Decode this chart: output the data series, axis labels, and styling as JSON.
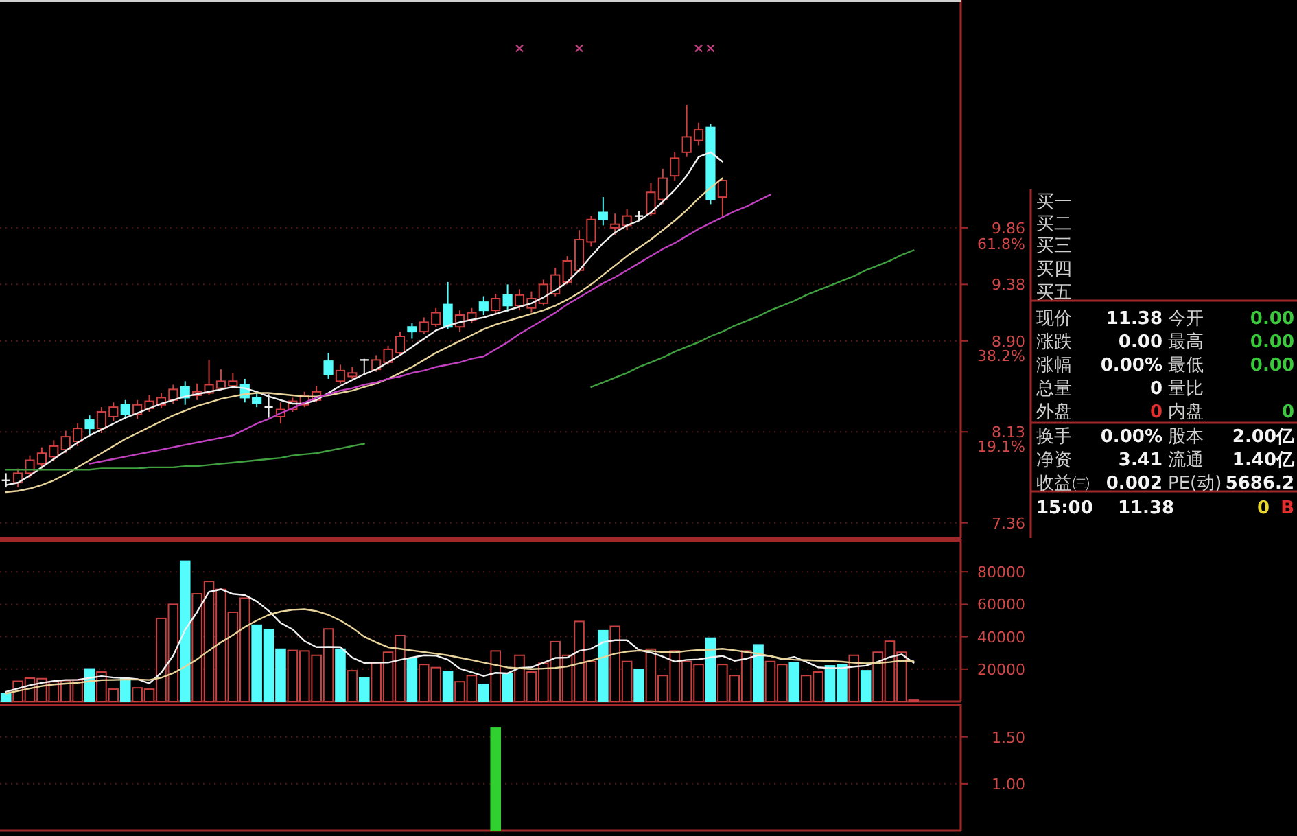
{
  "chart_data": [
    {
      "type": "candlestick",
      "categories": [
        null,
        null,
        null,
        null,
        null,
        null,
        null,
        null,
        null,
        null,
        null,
        null,
        null,
        null,
        null,
        null,
        null,
        null,
        null,
        null,
        null,
        null,
        null,
        null,
        null,
        null,
        null,
        null,
        null,
        null,
        null,
        null,
        null,
        null,
        null,
        null,
        null,
        null,
        null,
        null,
        null,
        null,
        null,
        null,
        null,
        null,
        null,
        null,
        null,
        null,
        null,
        null,
        null,
        null,
        null,
        null,
        null,
        null,
        null,
        null,
        null,
        null,
        null,
        null,
        null,
        null,
        null,
        null,
        null,
        null,
        null,
        null,
        null,
        null,
        null,
        null,
        null
      ],
      "ohlc": [
        [
          7.72,
          7.78,
          7.66,
          7.72
        ],
        [
          7.7,
          7.82,
          7.66,
          7.78
        ],
        [
          7.78,
          7.93,
          7.74,
          7.89
        ],
        [
          7.86,
          8.0,
          7.82,
          7.95
        ],
        [
          7.92,
          8.06,
          7.88,
          8.01
        ],
        [
          7.98,
          8.14,
          7.95,
          8.09
        ],
        [
          8.05,
          8.2,
          8.01,
          8.16
        ],
        [
          8.23,
          8.27,
          8.1,
          8.16
        ],
        [
          8.16,
          8.34,
          8.12,
          8.3
        ],
        [
          8.26,
          8.38,
          8.22,
          8.34
        ],
        [
          8.36,
          8.4,
          8.24,
          8.28
        ],
        [
          8.28,
          8.4,
          8.24,
          8.36
        ],
        [
          8.33,
          8.44,
          8.3,
          8.39
        ],
        [
          8.36,
          8.46,
          8.33,
          8.42
        ],
        [
          8.4,
          8.53,
          8.37,
          8.49
        ],
        [
          8.51,
          8.56,
          8.36,
          8.42
        ],
        [
          8.44,
          8.54,
          8.4,
          8.47
        ],
        [
          8.46,
          8.74,
          8.44,
          8.53
        ],
        [
          8.5,
          8.66,
          8.48,
          8.56
        ],
        [
          8.52,
          8.63,
          8.5,
          8.56
        ],
        [
          8.53,
          8.58,
          8.38,
          8.42
        ],
        [
          8.42,
          8.46,
          8.34,
          8.37
        ],
        [
          8.34,
          8.45,
          8.25,
          8.34
        ],
        [
          8.26,
          8.38,
          8.2,
          8.32
        ],
        [
          8.32,
          8.42,
          8.3,
          8.39
        ],
        [
          8.36,
          8.47,
          8.34,
          8.44
        ],
        [
          8.4,
          8.52,
          8.38,
          8.47
        ],
        [
          8.73,
          8.8,
          8.58,
          8.62
        ],
        [
          8.56,
          8.7,
          8.54,
          8.65
        ],
        [
          8.6,
          8.68,
          8.58,
          8.63
        ],
        [
          8.74,
          8.75,
          8.62,
          8.74
        ],
        [
          8.66,
          8.78,
          8.64,
          8.74
        ],
        [
          8.72,
          8.86,
          8.7,
          8.83
        ],
        [
          8.8,
          8.98,
          8.78,
          8.94
        ],
        [
          9.02,
          9.05,
          8.92,
          8.98
        ],
        [
          8.98,
          9.1,
          8.96,
          9.06
        ],
        [
          9.04,
          9.18,
          9.02,
          9.14
        ],
        [
          9.21,
          9.4,
          9.0,
          9.02
        ],
        [
          9.02,
          9.16,
          8.98,
          9.12
        ],
        [
          9.08,
          9.18,
          9.05,
          9.14
        ],
        [
          9.23,
          9.28,
          9.12,
          9.16
        ],
        [
          9.16,
          9.3,
          9.12,
          9.26
        ],
        [
          9.29,
          9.38,
          9.15,
          9.2
        ],
        [
          9.2,
          9.34,
          9.16,
          9.29
        ],
        [
          9.18,
          9.32,
          9.14,
          9.26
        ],
        [
          9.22,
          9.42,
          9.2,
          9.38
        ],
        [
          9.3,
          9.52,
          9.28,
          9.46
        ],
        [
          9.4,
          9.62,
          9.38,
          9.58
        ],
        [
          9.5,
          9.84,
          9.48,
          9.76
        ],
        [
          9.74,
          9.96,
          9.7,
          9.93
        ],
        [
          9.99,
          10.12,
          9.88,
          9.93
        ],
        [
          9.86,
          9.98,
          9.8,
          9.89
        ],
        [
          9.88,
          10.02,
          9.84,
          9.96
        ],
        [
          9.96,
          10.0,
          9.92,
          9.96
        ],
        [
          9.98,
          10.24,
          9.96,
          10.16
        ],
        [
          10.1,
          10.36,
          10.06,
          10.28
        ],
        [
          10.3,
          10.5,
          10.26,
          10.45
        ],
        [
          10.5,
          10.9,
          10.46,
          10.63
        ],
        [
          10.6,
          10.75,
          10.56,
          10.69
        ],
        [
          10.71,
          10.74,
          10.06,
          10.1
        ],
        [
          10.12,
          10.27,
          9.96,
          10.26
        ],
        null,
        null,
        null,
        null,
        null,
        null,
        null,
        null,
        null,
        null,
        null,
        null,
        null,
        null,
        null,
        null
      ],
      "series": [
        {
          "type": "line",
          "color": "#f0f0f0",
          "values": [
            7.68,
            7.7,
            7.76,
            7.83,
            7.9,
            7.97,
            8.04,
            8.1,
            8.15,
            8.2,
            8.25,
            8.29,
            8.33,
            8.37,
            8.4,
            8.43,
            8.45,
            8.47,
            8.49,
            8.51,
            8.5,
            8.47,
            8.43,
            8.4,
            8.37,
            8.37,
            8.4,
            8.46,
            8.52,
            8.57,
            8.62,
            8.66,
            8.72,
            8.78,
            8.85,
            8.92,
            8.99,
            9.03,
            9.06,
            9.08,
            9.1,
            9.13,
            9.16,
            9.19,
            9.22,
            9.27,
            9.33,
            9.4,
            9.5,
            9.62,
            9.73,
            9.82,
            9.88,
            9.92,
            9.99,
            10.08,
            10.18,
            10.3,
            10.46,
            10.5,
            10.42,
            null,
            null,
            null,
            null,
            null,
            null,
            null,
            null,
            null,
            null,
            null,
            null,
            null,
            null,
            null,
            null
          ]
        },
        {
          "type": "line",
          "color": "#e8d49a",
          "values": [
            7.62,
            7.63,
            7.65,
            7.68,
            7.72,
            7.77,
            7.83,
            7.89,
            7.95,
            8.01,
            8.07,
            8.12,
            8.17,
            8.22,
            8.27,
            8.31,
            8.35,
            8.38,
            8.41,
            8.43,
            8.45,
            8.46,
            8.46,
            8.45,
            8.44,
            8.43,
            8.43,
            8.44,
            8.46,
            8.48,
            8.51,
            8.54,
            8.58,
            8.63,
            8.68,
            8.74,
            8.8,
            8.85,
            8.9,
            8.95,
            9.0,
            9.04,
            9.07,
            9.1,
            9.13,
            9.16,
            9.2,
            9.25,
            9.31,
            9.38,
            9.46,
            9.54,
            9.62,
            9.69,
            9.76,
            9.84,
            9.92,
            10.01,
            10.11,
            10.2,
            10.28,
            null,
            null,
            null,
            null,
            null,
            null,
            null,
            null,
            null,
            null,
            null,
            null,
            null,
            null,
            null,
            null
          ]
        },
        {
          "type": "line",
          "color": "#c040c0",
          "values": [
            null,
            null,
            null,
            null,
            null,
            null,
            null,
            7.86,
            7.88,
            7.9,
            7.92,
            7.94,
            7.96,
            7.98,
            8.0,
            8.02,
            8.04,
            8.06,
            8.08,
            8.1,
            8.15,
            8.2,
            8.24,
            8.29,
            8.33,
            8.38,
            8.42,
            8.45,
            8.48,
            8.5,
            8.53,
            8.55,
            8.58,
            8.6,
            8.63,
            8.65,
            8.68,
            8.7,
            8.72,
            8.75,
            8.77,
            8.83,
            8.89,
            8.96,
            9.02,
            9.08,
            9.14,
            9.21,
            9.27,
            9.33,
            9.39,
            9.44,
            9.5,
            9.56,
            9.62,
            9.68,
            9.73,
            9.79,
            9.85,
            9.9,
            9.95,
            10.0,
            10.04,
            10.09,
            10.14,
            null,
            null,
            null,
            null,
            null,
            null,
            null,
            null,
            null,
            null,
            null,
            null
          ]
        },
        {
          "type": "line",
          "color": "#40a040",
          "values": [
            7.81,
            7.81,
            7.81,
            7.81,
            7.81,
            7.81,
            7.81,
            7.81,
            7.82,
            7.82,
            7.82,
            7.82,
            7.83,
            7.83,
            7.83,
            7.84,
            7.84,
            7.85,
            7.86,
            7.87,
            7.88,
            7.89,
            7.9,
            7.91,
            7.93,
            7.94,
            7.95,
            7.97,
            7.99,
            8.01,
            8.03,
            null,
            null,
            null,
            null,
            null,
            null,
            null,
            null,
            null,
            null,
            null,
            null,
            null,
            null,
            null,
            null,
            null,
            null,
            8.51,
            8.55,
            8.59,
            8.63,
            8.68,
            8.72,
            8.76,
            8.81,
            8.85,
            8.89,
            8.94,
            8.98,
            9.03,
            9.07,
            9.11,
            9.16,
            9.2,
            9.24,
            9.29,
            9.33,
            9.37,
            9.41,
            9.45,
            9.5,
            9.54,
            9.58,
            9.63,
            9.67
          ]
        },
        {
          "type": "scatter",
          "color": "#c04080",
          "marker": "cross",
          "values": [
            null,
            null,
            null,
            null,
            null,
            null,
            null,
            null,
            null,
            null,
            null,
            null,
            null,
            null,
            null,
            null,
            null,
            null,
            null,
            null,
            null,
            null,
            null,
            null,
            null,
            null,
            null,
            null,
            null,
            null,
            null,
            null,
            null,
            null,
            null,
            null,
            null,
            null,
            null,
            null,
            null,
            null,
            null,
            11.38,
            null,
            null,
            null,
            null,
            11.38,
            null,
            null,
            null,
            null,
            null,
            null,
            null,
            null,
            null,
            11.38,
            11.38,
            null,
            null,
            null,
            null,
            null,
            null,
            null,
            null,
            null,
            null,
            null,
            null,
            null,
            null,
            null,
            null,
            null
          ]
        }
      ],
      "ylim": [
        7.23,
        11.79
      ],
      "yticks": [
        7.36,
        8.13,
        {
          "value": 8.9,
          "label": "8.90"
        },
        9.38,
        9.86
      ],
      "grid": "y",
      "tick_labels": "y",
      "y2lim": [
        -3.2,
        110.2
      ],
      "y2ticks": [
        {
          "value": 19.1,
          "label": "19.1%"
        },
        {
          "value": 38.2,
          "label": "38.2%"
        },
        {
          "value": 61.8,
          "label": "61.8%"
        }
      ]
    },
    {
      "type": "bar",
      "categories": [
        null,
        null,
        null,
        null,
        null,
        null,
        null,
        null,
        null,
        null,
        null,
        null,
        null,
        null,
        null,
        null,
        null,
        null,
        null,
        null,
        null,
        null,
        null,
        null,
        null,
        null,
        null,
        null,
        null,
        null,
        null,
        null,
        null,
        null,
        null,
        null,
        null,
        null,
        null,
        null,
        null,
        null,
        null,
        null,
        null,
        null,
        null,
        null,
        null,
        null,
        null,
        null,
        null,
        null,
        null,
        null,
        null,
        null,
        null,
        null,
        null,
        null,
        null,
        null,
        null,
        null,
        null,
        null,
        null,
        null,
        null,
        null,
        null,
        null,
        null,
        null,
        null
      ],
      "series": [
        {
          "type": "bar",
          "values": [
            4900,
            12500,
            14400,
            14100,
            12200,
            12900,
            13300,
            20100,
            18200,
            7600,
            14100,
            8400,
            7600,
            51300,
            60000,
            86600,
            66500,
            74100,
            69200,
            55100,
            63800,
            47100,
            44500,
            32300,
            31500,
            31200,
            28500,
            44800,
            32300,
            19000,
            14400,
            23900,
            30400,
            40700,
            26600,
            22800,
            20900,
            18600,
            12200,
            16000,
            10600,
            31200,
            17100,
            28500,
            18200,
            23600,
            36900,
            28500,
            49400,
            24700,
            43700,
            46400,
            24700,
            19800,
            32300,
            16000,
            31200,
            24700,
            22800,
            39100,
            22800,
            16000,
            31200,
            35000,
            24700,
            22800,
            23900,
            16000,
            18200,
            22000,
            22800,
            28500,
            19000,
            30400,
            37200,
            30400,
            800
          ],
          "colors": [
            "#54fcfc",
            "#c84040",
            "#c84040",
            "#c84040",
            "#c84040",
            "#c84040",
            "#c84040",
            "#54fcfc",
            "#c84040",
            "#c84040",
            "#54fcfc",
            "#c84040",
            "#c84040",
            "#c84040",
            "#c84040",
            "#54fcfc",
            "#c84040",
            "#c84040",
            "#c84040",
            "#c84040",
            "#c84040",
            "#54fcfc",
            "#54fcfc",
            "#54fcfc",
            "#c84040",
            "#c84040",
            "#c84040",
            "#c84040",
            "#54fcfc",
            "#c84040",
            "#54fcfc",
            "#c84040",
            "#c84040",
            "#c84040",
            "#54fcfc",
            "#c84040",
            "#c84040",
            "#54fcfc",
            "#c84040",
            "#c84040",
            "#54fcfc",
            "#c84040",
            "#54fcfc",
            "#c84040",
            "#c84040",
            "#c84040",
            "#c84040",
            "#c84040",
            "#c84040",
            "#c84040",
            "#54fcfc",
            "#c84040",
            "#c84040",
            "#54fcfc",
            "#c84040",
            "#c84040",
            "#c84040",
            "#c84040",
            "#c84040",
            "#54fcfc",
            "#c84040",
            "#c84040",
            "#c84040",
            "#54fcfc",
            "#c84040",
            "#c84040",
            "#54fcfc",
            "#c84040",
            "#c84040",
            "#54fcfc",
            "#54fcfc",
            "#c84040",
            "#54fcfc",
            "#c84040",
            "#c84040",
            "#c84040",
            "#c84040"
          ]
        },
        {
          "type": "line",
          "color": "#f0f0f0",
          "values": [
            6000,
            8000,
            10000,
            11500,
            12600,
            13300,
            13400,
            14500,
            15600,
            14800,
            14500,
            13800,
            11200,
            17800,
            28300,
            44300,
            55200,
            67700,
            69300,
            66400,
            65700,
            61800,
            56000,
            48500,
            44500,
            37300,
            33600,
            33700,
            33600,
            27100,
            23800,
            23900,
            24000,
            25700,
            27100,
            28500,
            28300,
            25800,
            20300,
            18100,
            15700,
            17700,
            17400,
            20700,
            21100,
            23900,
            26900,
            27100,
            31300,
            32600,
            36600,
            37800,
            37800,
            31800,
            30200,
            27700,
            24600,
            25700,
            26000,
            27200,
            28100,
            25100,
            26400,
            28600,
            28100,
            26000,
            27500,
            24500,
            21100,
            20600,
            20600,
            21500,
            22100,
            24500,
            27400,
            29100,
            23900
          ]
        },
        {
          "type": "line",
          "color": "#e8d49a",
          "values": [
            5000,
            6500,
            8000,
            9500,
            10500,
            11000,
            11500,
            12500,
            13200,
            13300,
            13500,
            13600,
            13300,
            14700,
            17500,
            21500,
            26000,
            31500,
            36500,
            41000,
            46000,
            50000,
            53500,
            55500,
            56600,
            57000,
            55800,
            53500,
            50000,
            45500,
            40000,
            36500,
            33500,
            32500,
            31500,
            30500,
            29500,
            28500,
            27000,
            25600,
            24000,
            22500,
            21000,
            20500,
            20000,
            20300,
            20700,
            21600,
            23500,
            25300,
            27300,
            29500,
            30800,
            31400,
            31200,
            30500,
            30300,
            31200,
            31800,
            32000,
            32500,
            31600,
            30500,
            29500,
            28000,
            26500,
            25800,
            25500,
            25200,
            25000,
            24600,
            23900,
            23500,
            23700,
            24300,
            25200,
            24800
          ]
        }
      ],
      "ylim": [
        0,
        100000
      ],
      "yticks": [
        20000,
        40000,
        60000,
        80000
      ],
      "grid": "y",
      "tick_labels": "y"
    },
    {
      "type": "bar",
      "categories": [
        null,
        null,
        null,
        null,
        null,
        null,
        null,
        null,
        null,
        null,
        null,
        null,
        null,
        null,
        null,
        null,
        null,
        null,
        null,
        null,
        null,
        null,
        null,
        null,
        null,
        null,
        null,
        null,
        null,
        null,
        null,
        null,
        null,
        null,
        null,
        null,
        null,
        null,
        null,
        null,
        null,
        null,
        null,
        null,
        null,
        null,
        null,
        null,
        null,
        null,
        null,
        null,
        null,
        null,
        null,
        null,
        null,
        null,
        null,
        null,
        null,
        null,
        null,
        null,
        null,
        null,
        null,
        null,
        null,
        null,
        null,
        null,
        null,
        null,
        null,
        null,
        null
      ],
      "values": [
        null,
        null,
        null,
        null,
        null,
        null,
        null,
        null,
        null,
        null,
        null,
        null,
        null,
        null,
        null,
        null,
        null,
        null,
        null,
        null,
        null,
        null,
        null,
        null,
        null,
        null,
        null,
        null,
        null,
        null,
        null,
        null,
        null,
        null,
        null,
        null,
        null,
        null,
        null,
        null,
        null,
        1.6,
        null,
        null,
        null,
        null,
        null,
        null,
        null,
        null,
        null,
        null,
        null,
        null,
        null,
        null,
        null,
        null,
        null,
        null,
        null,
        null,
        null,
        null,
        null,
        null,
        null,
        null,
        null,
        null,
        null,
        null,
        null,
        null,
        null,
        null,
        null
      ],
      "color": "#30d030",
      "ylim": [
        0.5,
        1.85
      ],
      "yticks": [
        {
          "value": 1,
          "label": "1.00"
        },
        {
          "value": 1.5,
          "label": "1.50"
        }
      ],
      "grid": "y",
      "tick_labels": "y"
    },
    {
      "type": "other",
      "annotations": [
        "买一",
        "买二",
        "买三",
        "买四",
        "买五",
        "现价",
        "11.38",
        "今开",
        "0.00",
        "涨跌",
        "0.00",
        "最高",
        "0.00",
        "涨幅",
        "0.00%",
        "最低",
        "0.00",
        "总量",
        "0",
        "量比",
        "外盘",
        "0",
        "内盘",
        "0",
        "换手",
        "0.00%",
        "股本",
        "2.00亿",
        "净资",
        "3.41",
        "流通",
        "1.40亿",
        "收益㈢",
        "0.002",
        "PE(动)",
        "5686.2",
        "15:00",
        "11.38",
        "0",
        "B"
      ]
    }
  ]
}
